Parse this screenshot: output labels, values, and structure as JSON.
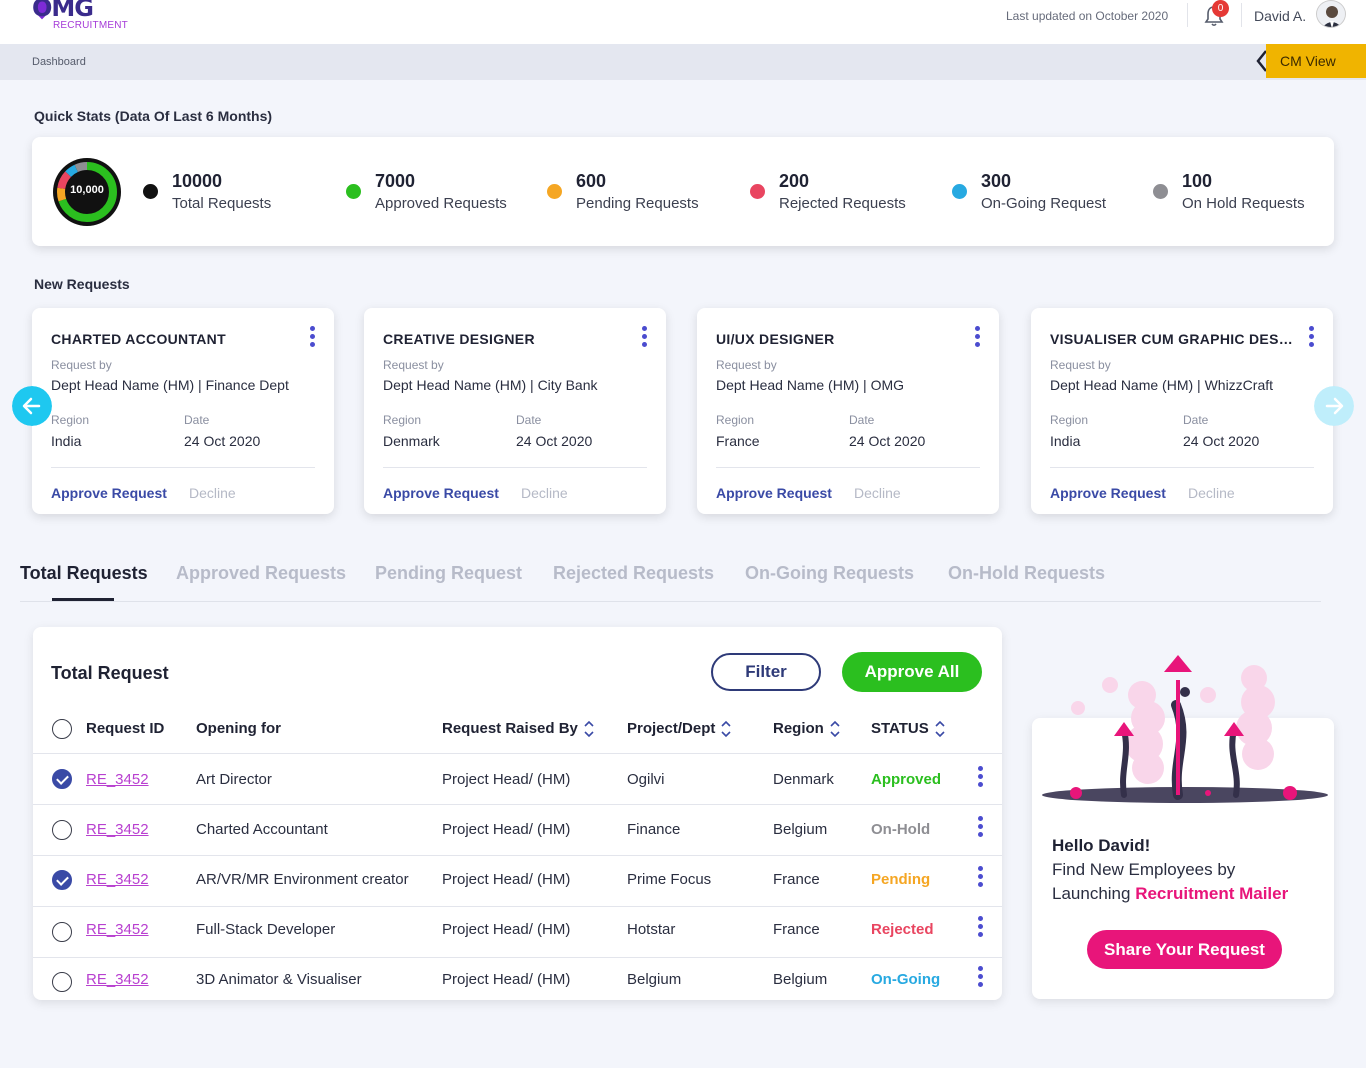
{
  "header": {
    "logo_text": "OMG",
    "logo_sub": "RECRUITMENT",
    "last_updated": "Last updated on October 2020",
    "notification_count": "0",
    "user_name": "David A."
  },
  "breadcrumb": {
    "current": "Dashboard"
  },
  "cm_view_label": "CM View",
  "quick_stats": {
    "title": "Quick Stats (Data Of Last 6 Months)",
    "donut_label": "10,000",
    "items": [
      {
        "value": "10000",
        "label": "Total Requests",
        "color": "#111111"
      },
      {
        "value": "7000",
        "label": "Approved  Requests",
        "color": "#2bbf1f"
      },
      {
        "value": "600",
        "label": "Pending Requests",
        "color": "#f5a623"
      },
      {
        "value": "200",
        "label": "Rejected Requests",
        "color": "#e94560"
      },
      {
        "value": "300",
        "label": "On-Going Request",
        "color": "#27a9e1"
      },
      {
        "value": "100",
        "label": "On Hold Requests",
        "color": "#8e8e93"
      }
    ]
  },
  "new_requests": {
    "title": "New Requests",
    "request_by_label": "Request by",
    "region_label": "Region",
    "date_label": "Date",
    "approve_label": "Approve Request",
    "decline_label": "Decline",
    "cards": [
      {
        "title": "CHARTED ACCOUNTANT",
        "requester": "Dept Head Name (HM)  |  Finance Dept",
        "region": "India",
        "date": "24 Oct 2020"
      },
      {
        "title": "CREATIVE DESIGNER",
        "requester": "Dept Head Name (HM)  |  City Bank",
        "region": "Denmark",
        "date": "24 Oct 2020"
      },
      {
        "title": "UI/UX DESIGNER",
        "requester": "Dept Head Name (HM)  |  OMG",
        "region": "France",
        "date": "24 Oct 2020"
      },
      {
        "title": "VISUALISER CUM GRAPHIC DESIGNER",
        "requester": "Dept Head Name (HM)  |  WhizzCraft",
        "region": "India",
        "date": "24 Oct 2020"
      }
    ]
  },
  "tabs": [
    "Total Requests",
    "Approved Requests",
    "Pending Request",
    "Rejected Requests",
    "On-Going Requests",
    "On-Hold Requests"
  ],
  "table": {
    "title": "Total Request",
    "filter_label": "Filter",
    "approve_all_label": "Approve All",
    "columns": [
      "Request ID",
      "Opening for",
      "Request Raised By",
      "Project/Dept",
      "Region",
      "STATUS"
    ],
    "rows": [
      {
        "id": "RE_3452",
        "opening": "Art Director",
        "raised_by": "Project Head/ (HM)",
        "dept": "Ogilvi",
        "region": "Denmark",
        "status": "Approved",
        "status_color": "#2bbf1f",
        "checked": true
      },
      {
        "id": "RE_3452",
        "opening": "Charted Accountant",
        "raised_by": "Project Head/ (HM)",
        "dept": "Finance",
        "region": "Belgium",
        "status": "On-Hold",
        "status_color": "#8e8e93",
        "checked": false
      },
      {
        "id": "RE_3452",
        "opening": "AR/VR/MR Environment creator",
        "raised_by": "Project Head/ (HM)",
        "dept": "Prime Focus",
        "region": "France",
        "status": "Pending",
        "status_color": "#f5a623",
        "checked": true
      },
      {
        "id": "RE_3452",
        "opening": "Full-Stack Developer",
        "raised_by": "Project Head/ (HM)",
        "dept": "Hotstar",
        "region": "France",
        "status": "Rejected",
        "status_color": "#e94560",
        "checked": false
      },
      {
        "id": "RE_3452",
        "opening": "3D Animator & Visualiser",
        "raised_by": "Project Head/ (HM)",
        "dept": "Belgium",
        "region": "Belgium",
        "status": "On-Going",
        "status_color": "#27a9e1",
        "checked": false
      }
    ]
  },
  "promo": {
    "hello": "Hello David!",
    "line1": "Find New Employees by",
    "line2_prefix": "Launching ",
    "line2_highlight": "Recruitment Mailer",
    "share_label": "Share Your Request"
  },
  "icons": [
    "bell-icon",
    "avatar",
    "chevron-left-icon",
    "arrow-left-icon",
    "arrow-right-icon",
    "kebab-icon",
    "sort-icon",
    "check-icon"
  ]
}
